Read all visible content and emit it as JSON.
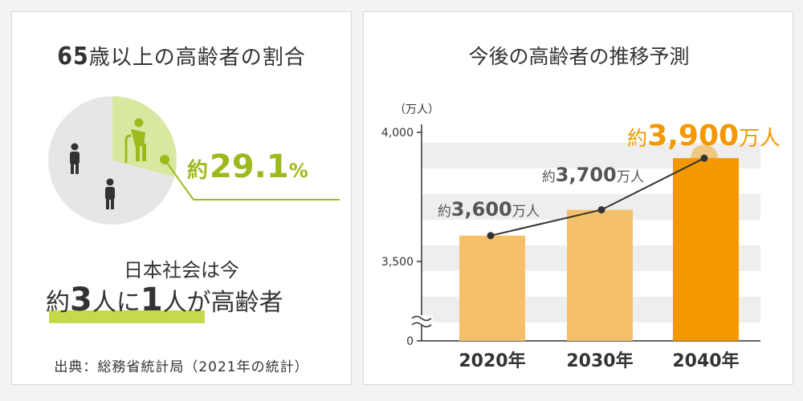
{
  "left": {
    "title_num": "65",
    "title_rest": "歳以上の高齢者の割合",
    "percent_prefix": "約",
    "percent_value": "29.1",
    "percent_suffix": "%",
    "line1": "日本社会は今",
    "line2_a": "約",
    "line2_b": "3",
    "line2_c": "人に",
    "line2_d": "1",
    "line2_e": "人が高齢者",
    "source": "出典：総務省統計局（2021年の統計）",
    "pie": {
      "elderly_share": 0.291,
      "colors": {
        "elderly": "#d8e8a0",
        "rest": "#e6e6e6",
        "accent": "#9cba1c",
        "person": "#333333"
      }
    }
  },
  "right": {
    "title": "今後の高齢者の推移予測",
    "colors": {
      "bar_light": "#f5c06a",
      "bar_highlight": "#f39800",
      "line": "#333333",
      "stripe": "#eeeeee",
      "highlight_text": "#f39800",
      "label_text": "#555555"
    }
  },
  "chart_data": {
    "type": "bar",
    "title": "今後の高齢者の推移予測",
    "ylabel": "（万人）",
    "categories": [
      "2020年",
      "2030年",
      "2040年"
    ],
    "values": [
      3600,
      3700,
      3900
    ],
    "data_labels": [
      {
        "prefix": "約",
        "value": "3,600",
        "unit": "万人"
      },
      {
        "prefix": "約",
        "value": "3,700",
        "unit": "万人"
      },
      {
        "prefix": "約",
        "value": "3,900",
        "unit": "万人"
      }
    ],
    "overlay": "line",
    "yticks": [
      "4,000",
      "3,500",
      "0"
    ],
    "ylim": [
      3300,
      4000
    ],
    "axis_break": true,
    "highlight_index": 2
  }
}
